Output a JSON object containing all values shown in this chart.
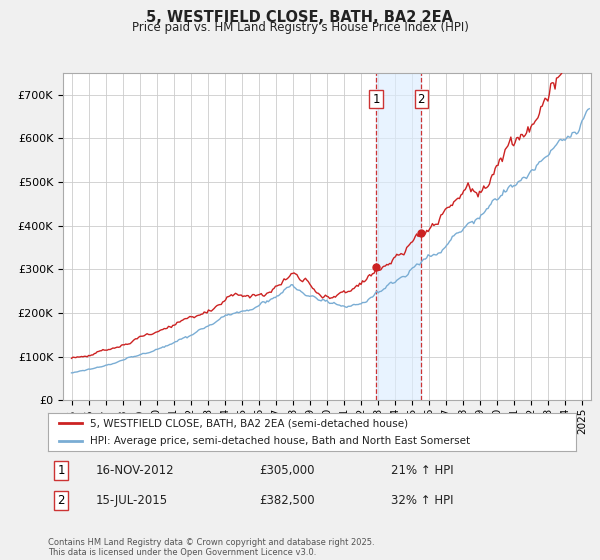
{
  "title": "5, WESTFIELD CLOSE, BATH, BA2 2EA",
  "subtitle": "Price paid vs. HM Land Registry's House Price Index (HPI)",
  "legend_line1": "5, WESTFIELD CLOSE, BATH, BA2 2EA (semi-detached house)",
  "legend_line2": "HPI: Average price, semi-detached house, Bath and North East Somerset",
  "sale1_date": "16-NOV-2012",
  "sale1_price": "£305,000",
  "sale1_hpi": "21% ↑ HPI",
  "sale1_x": 2012.88,
  "sale1_y": 305000,
  "sale2_date": "15-JUL-2015",
  "sale2_price": "£382,500",
  "sale2_hpi": "32% ↑ HPI",
  "sale2_x": 2015.54,
  "sale2_y": 382500,
  "ylim": [
    0,
    750000
  ],
  "xlim_start": 1994.5,
  "xlim_end": 2025.5,
  "yticks": [
    0,
    100000,
    200000,
    300000,
    400000,
    500000,
    600000,
    700000
  ],
  "ytick_labels": [
    "£0",
    "£100K",
    "£200K",
    "£300K",
    "£400K",
    "£500K",
    "£600K",
    "£700K"
  ],
  "hpi_color": "#7aadd4",
  "price_color": "#cc2222",
  "background_color": "#f0f0f0",
  "plot_bg_color": "#ffffff",
  "grid_color": "#cccccc",
  "vline_color": "#cc3333",
  "shade_color": "#ddeeff",
  "footer": "Contains HM Land Registry data © Crown copyright and database right 2025.\nThis data is licensed under the Open Government Licence v3.0."
}
